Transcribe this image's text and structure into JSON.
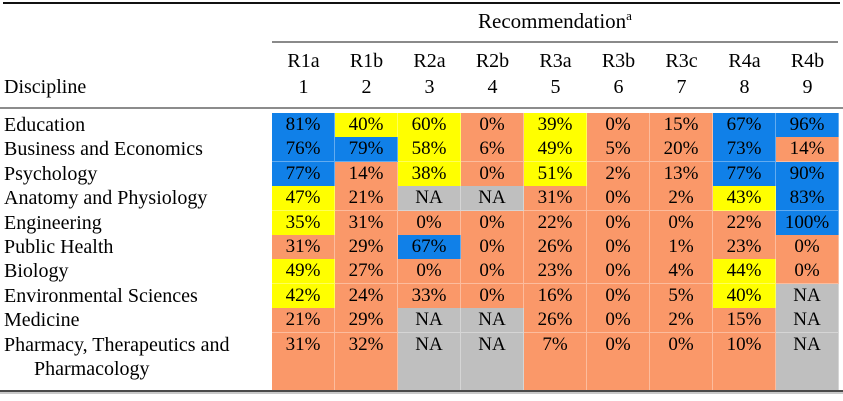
{
  "table": {
    "title": "Recommendation",
    "title_superscript": "a",
    "discipline_header": "Discipline",
    "na_label": "NA",
    "colors": {
      "blue": "#1080E8",
      "yellow": "#FFFF00",
      "orange": "#FA9869",
      "gray": "#BFBFBF"
    },
    "columns": [
      {
        "label": "R1a",
        "number": "1"
      },
      {
        "label": "R1b",
        "number": "2"
      },
      {
        "label": "R2a",
        "number": "3"
      },
      {
        "label": "R2b",
        "number": "4"
      },
      {
        "label": "R3a",
        "number": "5"
      },
      {
        "label": "R3b",
        "number": "6"
      },
      {
        "label": "R3c",
        "number": "7"
      },
      {
        "label": "R4a",
        "number": "8"
      },
      {
        "label": "R4b",
        "number": "9"
      }
    ],
    "rows": [
      {
        "discipline": "Education",
        "cells": [
          {
            "value": "81%",
            "color": "blue"
          },
          {
            "value": "40%",
            "color": "yellow"
          },
          {
            "value": "60%",
            "color": "yellow"
          },
          {
            "value": "0%",
            "color": "orange"
          },
          {
            "value": "39%",
            "color": "yellow"
          },
          {
            "value": "0%",
            "color": "orange"
          },
          {
            "value": "15%",
            "color": "orange"
          },
          {
            "value": "67%",
            "color": "blue"
          },
          {
            "value": "96%",
            "color": "blue"
          }
        ]
      },
      {
        "discipline": "Business and Economics",
        "cells": [
          {
            "value": "76%",
            "color": "blue"
          },
          {
            "value": "79%",
            "color": "blue"
          },
          {
            "value": "58%",
            "color": "yellow"
          },
          {
            "value": "6%",
            "color": "orange"
          },
          {
            "value": "49%",
            "color": "yellow"
          },
          {
            "value": "5%",
            "color": "orange"
          },
          {
            "value": "20%",
            "color": "orange"
          },
          {
            "value": "73%",
            "color": "blue"
          },
          {
            "value": "14%",
            "color": "orange"
          }
        ]
      },
      {
        "discipline": "Psychology",
        "cells": [
          {
            "value": "77%",
            "color": "blue"
          },
          {
            "value": "14%",
            "color": "orange"
          },
          {
            "value": "38%",
            "color": "yellow"
          },
          {
            "value": "0%",
            "color": "orange"
          },
          {
            "value": "51%",
            "color": "yellow"
          },
          {
            "value": "2%",
            "color": "orange"
          },
          {
            "value": "13%",
            "color": "orange"
          },
          {
            "value": "77%",
            "color": "blue"
          },
          {
            "value": "90%",
            "color": "blue"
          }
        ]
      },
      {
        "discipline": "Anatomy and Physiology",
        "cells": [
          {
            "value": "47%",
            "color": "yellow"
          },
          {
            "value": "21%",
            "color": "orange"
          },
          {
            "value": "NA",
            "color": "gray"
          },
          {
            "value": "NA",
            "color": "gray"
          },
          {
            "value": "31%",
            "color": "orange"
          },
          {
            "value": "0%",
            "color": "orange"
          },
          {
            "value": "2%",
            "color": "orange"
          },
          {
            "value": "43%",
            "color": "yellow"
          },
          {
            "value": "83%",
            "color": "blue"
          }
        ]
      },
      {
        "discipline": "Engineering",
        "cells": [
          {
            "value": "35%",
            "color": "yellow"
          },
          {
            "value": "31%",
            "color": "orange"
          },
          {
            "value": "0%",
            "color": "orange"
          },
          {
            "value": "0%",
            "color": "orange"
          },
          {
            "value": "22%",
            "color": "orange"
          },
          {
            "value": "0%",
            "color": "orange"
          },
          {
            "value": "0%",
            "color": "orange"
          },
          {
            "value": "22%",
            "color": "orange"
          },
          {
            "value": "100%",
            "color": "blue"
          }
        ]
      },
      {
        "discipline": "Public Health",
        "cells": [
          {
            "value": "31%",
            "color": "orange"
          },
          {
            "value": "29%",
            "color": "orange"
          },
          {
            "value": "67%",
            "color": "blue"
          },
          {
            "value": "0%",
            "color": "orange"
          },
          {
            "value": "26%",
            "color": "orange"
          },
          {
            "value": "0%",
            "color": "orange"
          },
          {
            "value": "1%",
            "color": "orange"
          },
          {
            "value": "23%",
            "color": "orange"
          },
          {
            "value": "0%",
            "color": "orange"
          }
        ]
      },
      {
        "discipline": "Biology",
        "cells": [
          {
            "value": "49%",
            "color": "yellow"
          },
          {
            "value": "27%",
            "color": "orange"
          },
          {
            "value": "0%",
            "color": "orange"
          },
          {
            "value": "0%",
            "color": "orange"
          },
          {
            "value": "23%",
            "color": "orange"
          },
          {
            "value": "0%",
            "color": "orange"
          },
          {
            "value": "4%",
            "color": "orange"
          },
          {
            "value": "44%",
            "color": "yellow"
          },
          {
            "value": "0%",
            "color": "orange"
          }
        ]
      },
      {
        "discipline": "Environmental Sciences",
        "cells": [
          {
            "value": "42%",
            "color": "yellow"
          },
          {
            "value": "24%",
            "color": "orange"
          },
          {
            "value": "33%",
            "color": "orange"
          },
          {
            "value": "0%",
            "color": "orange"
          },
          {
            "value": "16%",
            "color": "orange"
          },
          {
            "value": "0%",
            "color": "orange"
          },
          {
            "value": "5%",
            "color": "orange"
          },
          {
            "value": "40%",
            "color": "yellow"
          },
          {
            "value": "NA",
            "color": "gray"
          }
        ]
      },
      {
        "discipline": "Medicine",
        "cells": [
          {
            "value": "21%",
            "color": "orange"
          },
          {
            "value": "29%",
            "color": "orange"
          },
          {
            "value": "NA",
            "color": "gray"
          },
          {
            "value": "NA",
            "color": "gray"
          },
          {
            "value": "26%",
            "color": "orange"
          },
          {
            "value": "0%",
            "color": "orange"
          },
          {
            "value": "2%",
            "color": "orange"
          },
          {
            "value": "15%",
            "color": "orange"
          },
          {
            "value": "NA",
            "color": "gray"
          }
        ]
      },
      {
        "discipline": "Pharmacy, Therapeutics and Pharmacology",
        "cells": [
          {
            "value": "31%",
            "color": "orange"
          },
          {
            "value": "32%",
            "color": "orange"
          },
          {
            "value": "NA",
            "color": "gray"
          },
          {
            "value": "NA",
            "color": "gray"
          },
          {
            "value": "7%",
            "color": "orange"
          },
          {
            "value": "0%",
            "color": "orange"
          },
          {
            "value": "0%",
            "color": "orange"
          },
          {
            "value": "10%",
            "color": "orange"
          },
          {
            "value": "NA",
            "color": "gray"
          }
        ]
      }
    ]
  }
}
